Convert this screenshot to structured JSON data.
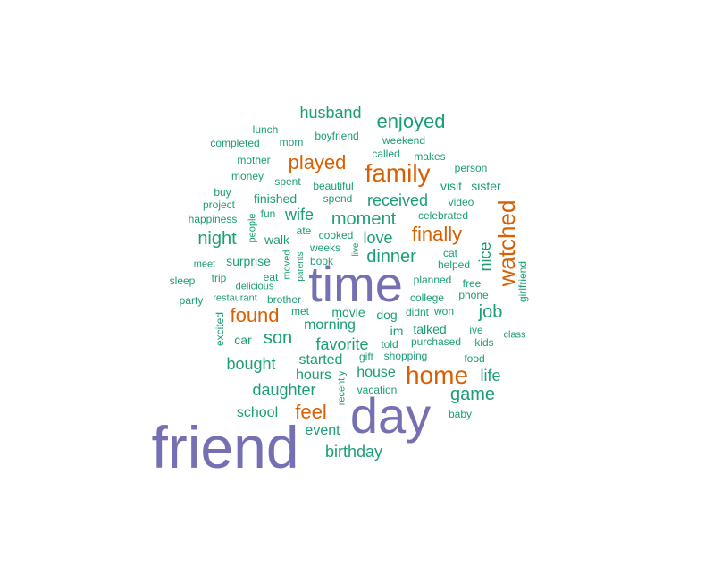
{
  "colors": {
    "purple": "#7570b3",
    "orange": "#d95f02",
    "teal": "#1b9e77"
  },
  "words": [
    {
      "t": "friend",
      "c": "purple"
    },
    {
      "t": "day",
      "c": "purple"
    },
    {
      "t": "time",
      "c": "purple"
    },
    {
      "t": "home",
      "c": "orange"
    },
    {
      "t": "family",
      "c": "orange"
    },
    {
      "t": "watched",
      "c": "orange"
    },
    {
      "t": "found",
      "c": "orange"
    },
    {
      "t": "finally",
      "c": "orange"
    },
    {
      "t": "feel",
      "c": "orange"
    },
    {
      "t": "played",
      "c": "orange"
    },
    {
      "t": "enjoyed",
      "c": "teal"
    },
    {
      "t": "husband",
      "c": "teal"
    },
    {
      "t": "moment",
      "c": "teal"
    },
    {
      "t": "night",
      "c": "teal"
    },
    {
      "t": "dinner",
      "c": "teal"
    },
    {
      "t": "job",
      "c": "teal"
    },
    {
      "t": "nice",
      "c": "teal"
    },
    {
      "t": "game",
      "c": "teal"
    },
    {
      "t": "daughter",
      "c": "teal"
    },
    {
      "t": "son",
      "c": "teal"
    },
    {
      "t": "favorite",
      "c": "teal"
    },
    {
      "t": "birthday",
      "c": "teal"
    },
    {
      "t": "bought",
      "c": "teal"
    },
    {
      "t": "morning",
      "c": "teal"
    },
    {
      "t": "received",
      "c": "teal"
    },
    {
      "t": "wife",
      "c": "teal"
    },
    {
      "t": "love",
      "c": "teal"
    },
    {
      "t": "life",
      "c": "teal"
    },
    {
      "t": "school",
      "c": "teal"
    },
    {
      "t": "started",
      "c": "teal"
    },
    {
      "t": "event",
      "c": "teal"
    },
    {
      "t": "house",
      "c": "teal"
    },
    {
      "t": "hours",
      "c": "teal"
    },
    {
      "t": "visit",
      "c": "teal"
    },
    {
      "t": "sister",
      "c": "teal"
    },
    {
      "t": "finished",
      "c": "teal"
    },
    {
      "t": "surprise",
      "c": "teal"
    },
    {
      "t": "dog",
      "c": "teal"
    },
    {
      "t": "talked",
      "c": "teal"
    },
    {
      "t": "movie",
      "c": "teal"
    },
    {
      "t": "car",
      "c": "teal"
    },
    {
      "t": "im",
      "c": "teal"
    },
    {
      "t": "walk",
      "c": "teal"
    },
    {
      "t": "lunch",
      "c": "teal"
    },
    {
      "t": "completed",
      "c": "teal"
    },
    {
      "t": "mom",
      "c": "teal"
    },
    {
      "t": "boyfriend",
      "c": "teal"
    },
    {
      "t": "weekend",
      "c": "teal"
    },
    {
      "t": "mother",
      "c": "teal"
    },
    {
      "t": "called",
      "c": "teal"
    },
    {
      "t": "makes",
      "c": "teal"
    },
    {
      "t": "money",
      "c": "teal"
    },
    {
      "t": "spent",
      "c": "teal"
    },
    {
      "t": "person",
      "c": "teal"
    },
    {
      "t": "beautiful",
      "c": "teal"
    },
    {
      "t": "buy",
      "c": "teal"
    },
    {
      "t": "project",
      "c": "teal"
    },
    {
      "t": "spend",
      "c": "teal"
    },
    {
      "t": "video",
      "c": "teal"
    },
    {
      "t": "fun",
      "c": "teal"
    },
    {
      "t": "celebrated",
      "c": "teal"
    },
    {
      "t": "happiness",
      "c": "teal"
    },
    {
      "t": "people",
      "c": "teal"
    },
    {
      "t": "ate",
      "c": "teal"
    },
    {
      "t": "cooked",
      "c": "teal"
    },
    {
      "t": "weeks",
      "c": "teal"
    },
    {
      "t": "live",
      "c": "teal"
    },
    {
      "t": "cat",
      "c": "teal"
    },
    {
      "t": "meet",
      "c": "teal"
    },
    {
      "t": "book",
      "c": "teal"
    },
    {
      "t": "helped",
      "c": "teal"
    },
    {
      "t": "trip",
      "c": "teal"
    },
    {
      "t": "moved",
      "c": "teal"
    },
    {
      "t": "parents",
      "c": "teal"
    },
    {
      "t": "eat",
      "c": "teal"
    },
    {
      "t": "sleep",
      "c": "teal"
    },
    {
      "t": "delicious",
      "c": "teal"
    },
    {
      "t": "planned",
      "c": "teal"
    },
    {
      "t": "free",
      "c": "teal"
    },
    {
      "t": "girlfriend",
      "c": "teal"
    },
    {
      "t": "party",
      "c": "teal"
    },
    {
      "t": "restaurant",
      "c": "teal"
    },
    {
      "t": "brother",
      "c": "teal"
    },
    {
      "t": "college",
      "c": "teal"
    },
    {
      "t": "phone",
      "c": "teal"
    },
    {
      "t": "met",
      "c": "teal"
    },
    {
      "t": "didnt",
      "c": "teal"
    },
    {
      "t": "won",
      "c": "teal"
    },
    {
      "t": "excited",
      "c": "teal"
    },
    {
      "t": "ive",
      "c": "teal"
    },
    {
      "t": "class",
      "c": "teal"
    },
    {
      "t": "told",
      "c": "teal"
    },
    {
      "t": "purchased",
      "c": "teal"
    },
    {
      "t": "kids",
      "c": "teal"
    },
    {
      "t": "gift",
      "c": "teal"
    },
    {
      "t": "shopping",
      "c": "teal"
    },
    {
      "t": "food",
      "c": "teal"
    },
    {
      "t": "recently",
      "c": "teal"
    },
    {
      "t": "vacation",
      "c": "teal"
    },
    {
      "t": "baby",
      "c": "teal"
    }
  ]
}
